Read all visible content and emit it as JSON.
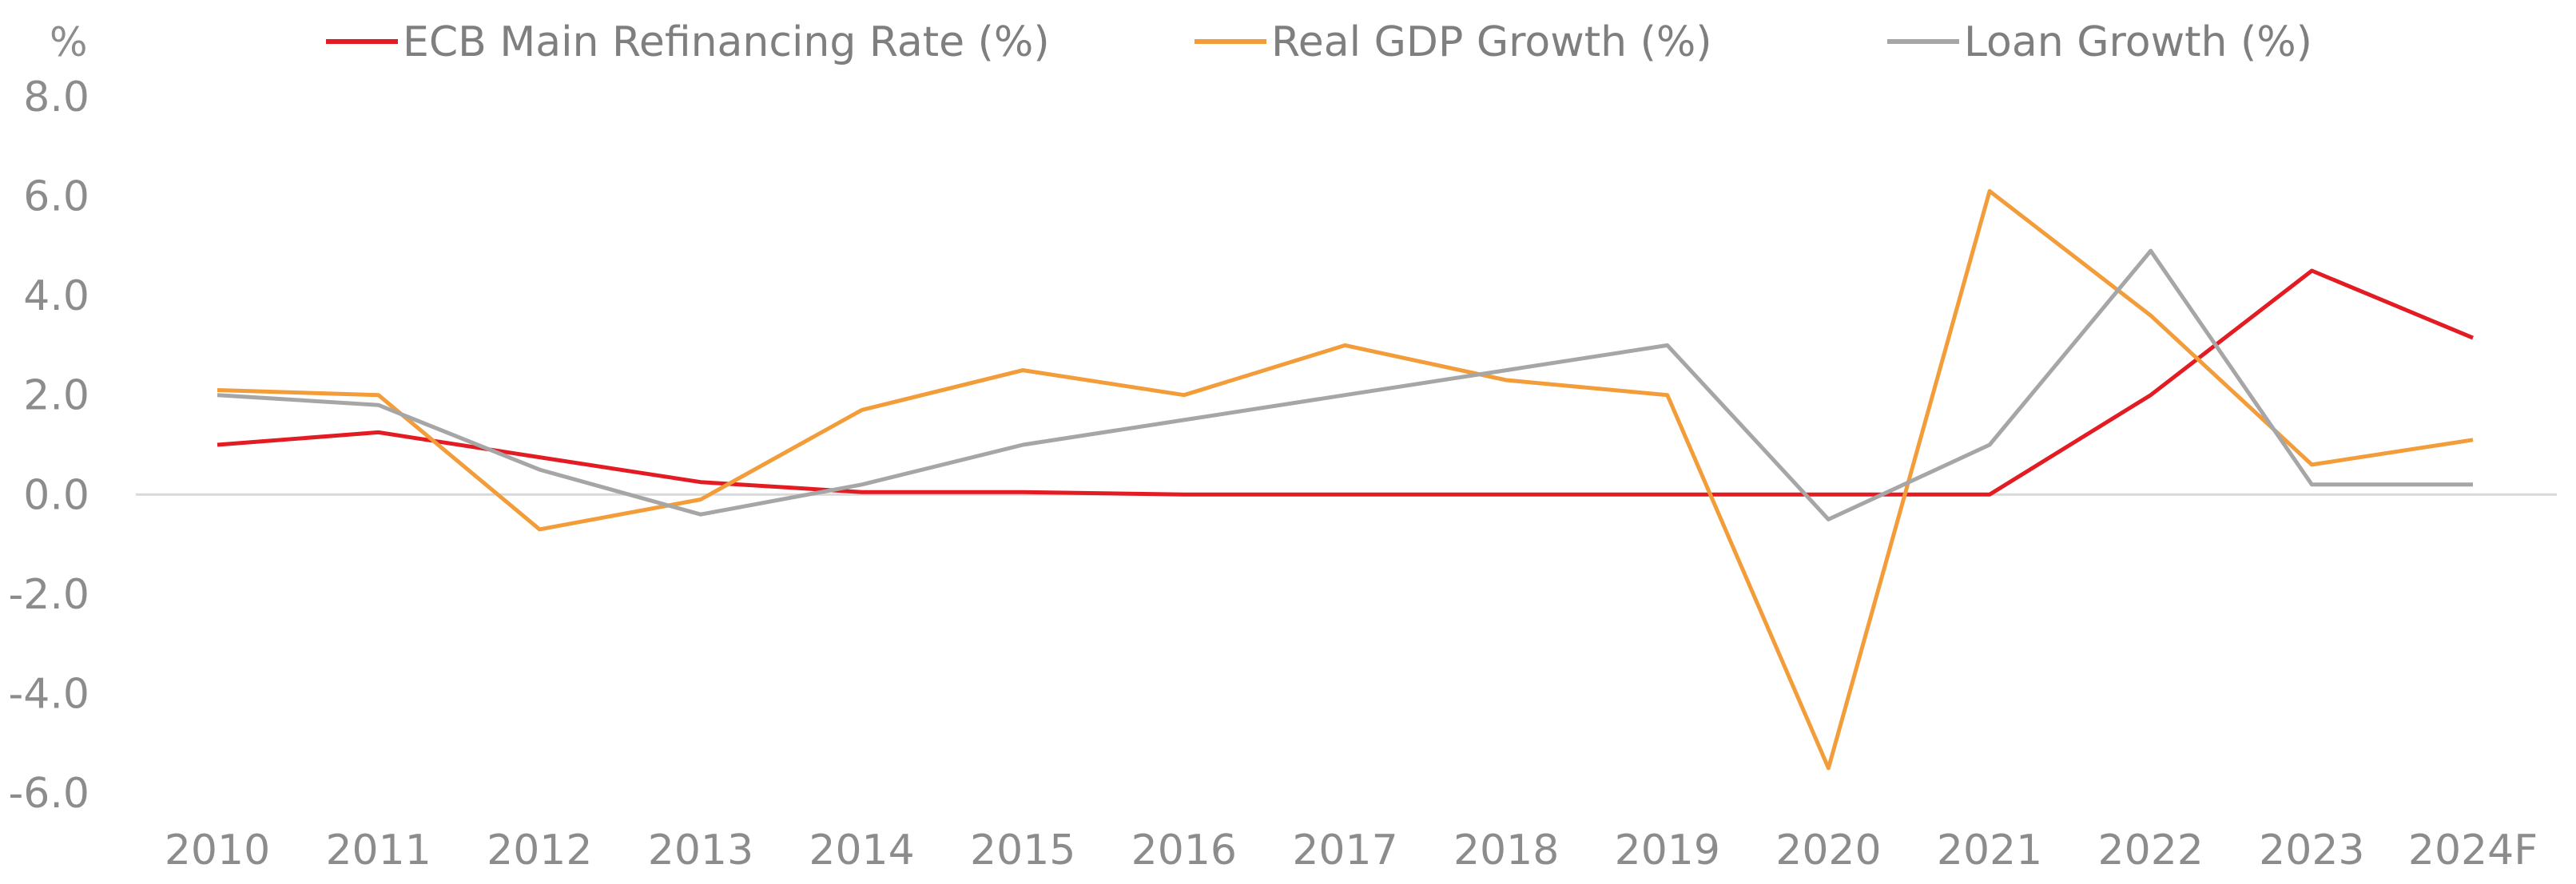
{
  "chart_data": {
    "type": "line",
    "ylabel": "%",
    "ylim": [
      -6,
      8
    ],
    "y_ticks": [
      "8.0",
      "6.0",
      "4.0",
      "2.0",
      "0.0",
      "-2.0",
      "-4.0",
      "-6.0"
    ],
    "y_tick_values": [
      8,
      6,
      4,
      2,
      0,
      -2,
      -4,
      -6
    ],
    "categories": [
      "2010",
      "2011",
      "2012",
      "2013",
      "2014",
      "2015",
      "2016",
      "2017",
      "2018",
      "2019",
      "2020",
      "2021",
      "2022",
      "2023",
      "2024F"
    ],
    "grid": false,
    "zero_line": true,
    "legend_position": "top",
    "series": [
      {
        "name": "ECB Main Refinancing Rate (%)",
        "color": "#e31b23",
        "values": [
          1.0,
          1.25,
          0.75,
          0.25,
          0.05,
          0.05,
          0.0,
          0.0,
          0.0,
          0.0,
          0.0,
          0.0,
          2.0,
          4.5,
          3.15
        ]
      },
      {
        "name": "Real GDP Growth (%)",
        "color": "#f39c3a",
        "values": [
          2.1,
          2.0,
          -0.7,
          -0.1,
          1.7,
          2.5,
          2.0,
          3.0,
          2.3,
          2.0,
          -5.5,
          6.1,
          3.6,
          0.6,
          1.1
        ]
      },
      {
        "name": "Loan Growth (%)",
        "color": "#a6a6a6",
        "values": [
          2.0,
          1.8,
          0.5,
          -0.4,
          0.2,
          1.0,
          1.5,
          2.0,
          2.5,
          3.0,
          -0.5,
          1.0,
          4.9,
          0.2,
          0.2
        ]
      }
    ]
  }
}
